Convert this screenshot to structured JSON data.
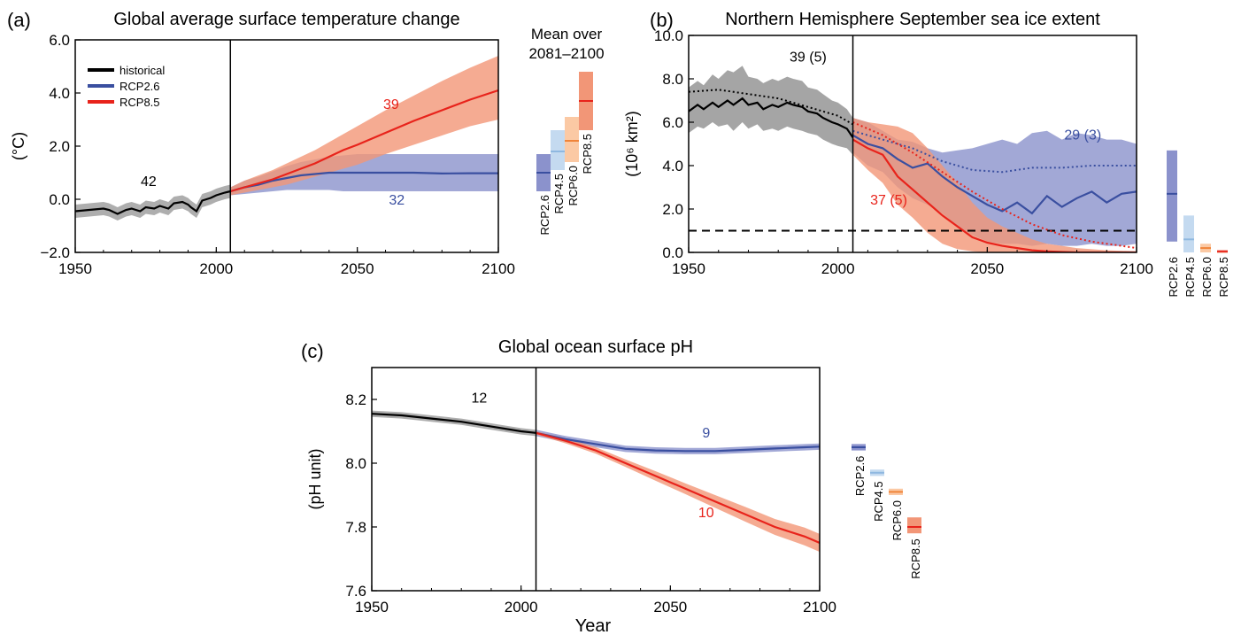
{
  "chart_data": [
    {
      "type": "line",
      "panel": "(a)",
      "title": "Global average surface temperature change",
      "ylabel": "(°C)",
      "xlim": [
        1950,
        2100
      ],
      "ylim": [
        -2.0,
        6.0
      ],
      "xticks": [
        "1950",
        "2000",
        "2050",
        "2100"
      ],
      "yticks": [
        "6.0",
        "4.0",
        "2.0",
        "0.0",
        "−2.0"
      ],
      "divider_year": 2005,
      "legend": {
        "position": "top-left",
        "items": [
          "historical",
          "RCP2.6",
          "RCP8.5"
        ]
      },
      "annotations": [
        {
          "text": "42",
          "x": 1976,
          "y": 0.5,
          "color": "#000000"
        },
        {
          "text": "39",
          "x": 2062,
          "y": 3.4,
          "color": "#e8231b"
        },
        {
          "text": "32",
          "x": 2064,
          "y": -0.2,
          "color": "#3a4fa0"
        }
      ],
      "series": [
        {
          "name": "historical",
          "color": "#000000",
          "band_color": "#9a9a9a",
          "x": [
            1950,
            1955,
            1960,
            1962,
            1965,
            1968,
            1970,
            1973,
            1975,
            1978,
            1980,
            1983,
            1985,
            1988,
            1990,
            1991,
            1993,
            1995,
            1998,
            2000,
            2003,
            2005
          ],
          "values": [
            -0.45,
            -0.4,
            -0.35,
            -0.4,
            -0.55,
            -0.4,
            -0.35,
            -0.45,
            -0.3,
            -0.35,
            -0.25,
            -0.35,
            -0.15,
            -0.1,
            -0.2,
            -0.3,
            -0.45,
            -0.05,
            0.05,
            0.15,
            0.25,
            0.3
          ],
          "band": 0.25
        },
        {
          "name": "RCP2.6",
          "color": "#3a4fa0",
          "band_color": "#8b92cc",
          "x": [
            2005,
            2010,
            2015,
            2020,
            2025,
            2030,
            2035,
            2040,
            2045,
            2050,
            2060,
            2070,
            2080,
            2090,
            2100
          ],
          "values": [
            0.3,
            0.45,
            0.55,
            0.7,
            0.8,
            0.9,
            0.95,
            1.0,
            1.0,
            1.0,
            1.0,
            1.0,
            0.97,
            0.98,
            0.98
          ],
          "lower": [
            0.15,
            0.2,
            0.25,
            0.3,
            0.35,
            0.35,
            0.35,
            0.35,
            0.3,
            0.3,
            0.3,
            0.3,
            0.3,
            0.3,
            0.3
          ],
          "upper": [
            0.45,
            0.7,
            0.85,
            1.05,
            1.25,
            1.4,
            1.5,
            1.6,
            1.65,
            1.7,
            1.7,
            1.7,
            1.7,
            1.7,
            1.7
          ]
        },
        {
          "name": "RCP8.5",
          "color": "#e8231b",
          "band_color": "#f29677",
          "x": [
            2005,
            2010,
            2015,
            2020,
            2025,
            2030,
            2035,
            2040,
            2045,
            2050,
            2060,
            2070,
            2080,
            2090,
            2100
          ],
          "values": [
            0.3,
            0.45,
            0.6,
            0.75,
            0.95,
            1.15,
            1.35,
            1.6,
            1.85,
            2.05,
            2.5,
            2.95,
            3.35,
            3.75,
            4.1
          ],
          "lower": [
            0.15,
            0.25,
            0.35,
            0.45,
            0.55,
            0.7,
            0.85,
            1.0,
            1.15,
            1.3,
            1.7,
            2.05,
            2.4,
            2.75,
            3.0
          ],
          "upper": [
            0.45,
            0.7,
            0.9,
            1.1,
            1.35,
            1.6,
            1.85,
            2.15,
            2.45,
            2.75,
            3.35,
            3.9,
            4.45,
            4.95,
            5.4
          ]
        }
      ],
      "summary_header": "Mean over\n2081–2100",
      "summary_header_lines": [
        "Mean over",
        "2081–2100"
      ],
      "summary_bars": [
        {
          "name": "RCP2.6",
          "mean": 1.0,
          "low": 0.3,
          "high": 1.7,
          "color": "#8b92cc",
          "line_color": "#3a4fa0"
        },
        {
          "name": "RCP4.5",
          "mean": 1.8,
          "low": 1.1,
          "high": 2.6,
          "color": "#c4daf0",
          "line_color": "#8fb8e0"
        },
        {
          "name": "RCP6.0",
          "mean": 2.2,
          "low": 1.4,
          "high": 3.1,
          "color": "#fbc9a4",
          "line_color": "#f0843a"
        },
        {
          "name": "RCP8.5",
          "mean": 3.7,
          "low": 2.6,
          "high": 4.8,
          "color": "#f29677",
          "line_color": "#e8231b"
        }
      ]
    },
    {
      "type": "line",
      "panel": "(b)",
      "title": "Northern Hemisphere September sea ice extent",
      "ylabel": "(10⁶ km²)",
      "xlim": [
        1950,
        2100
      ],
      "ylim": [
        0.0,
        10.0
      ],
      "xticks": [
        "1950",
        "2000",
        "2050",
        "2100"
      ],
      "yticks": [
        "10.0",
        "8.0",
        "6.0",
        "4.0",
        "2.0",
        "0.0"
      ],
      "divider_year": 2005,
      "threshold": 1.0,
      "annotations": [
        {
          "text": "39 (5)",
          "x": 1990,
          "y": 8.8,
          "color": "#000000"
        },
        {
          "text": "29 (3)",
          "x": 2082,
          "y": 5.2,
          "color": "#3a4fa0"
        },
        {
          "text": "37 (5)",
          "x": 2017,
          "y": 2.2,
          "color": "#e8231b"
        }
      ],
      "series": [
        {
          "name": "historical",
          "color": "#000000",
          "band_color": "#8f8f8f",
          "x": [
            1950,
            1953,
            1955,
            1958,
            1960,
            1963,
            1965,
            1968,
            1970,
            1973,
            1975,
            1978,
            1980,
            1983,
            1985,
            1988,
            1990,
            1993,
            1995,
            1998,
            2000,
            2003,
            2005
          ],
          "values": [
            6.5,
            6.8,
            6.6,
            6.9,
            6.7,
            7.0,
            6.8,
            7.1,
            6.8,
            6.9,
            6.6,
            6.8,
            6.7,
            6.9,
            6.8,
            6.7,
            6.5,
            6.4,
            6.2,
            6.0,
            5.9,
            5.7,
            5.3
          ],
          "band_lo": [
            5.5,
            5.8,
            5.7,
            6.0,
            5.8,
            5.9,
            5.6,
            6.0,
            5.7,
            5.9,
            5.6,
            5.7,
            5.6,
            5.8,
            5.7,
            5.6,
            5.5,
            5.4,
            5.2,
            5.0,
            4.9,
            4.8,
            4.5
          ],
          "band_hi": [
            7.6,
            7.9,
            7.7,
            8.2,
            8.0,
            8.4,
            8.3,
            8.6,
            8.1,
            8.0,
            7.8,
            8.0,
            7.9,
            8.1,
            8.0,
            7.9,
            7.6,
            7.5,
            7.3,
            7.0,
            6.9,
            6.6,
            6.2
          ]
        },
        {
          "name": "historical-obs",
          "color": "#000000",
          "style": "dotted",
          "x": [
            1950,
            1960,
            1970,
            1980,
            1990,
            2000,
            2005
          ],
          "values": [
            7.4,
            7.5,
            7.3,
            7.1,
            6.7,
            6.3,
            5.9
          ]
        },
        {
          "name": "RCP2.6",
          "color": "#3a4fa0",
          "band_color": "#8b92cc",
          "x": [
            2005,
            2010,
            2015,
            2020,
            2025,
            2030,
            2035,
            2040,
            2045,
            2050,
            2055,
            2060,
            2065,
            2070,
            2075,
            2080,
            2085,
            2090,
            2095,
            2100
          ],
          "values": [
            5.4,
            5.0,
            4.8,
            4.3,
            3.9,
            4.1,
            3.5,
            3.0,
            2.6,
            2.2,
            1.9,
            2.3,
            1.8,
            2.6,
            2.1,
            2.5,
            2.8,
            2.3,
            2.7,
            2.8
          ],
          "band_lo": [
            4.6,
            4.0,
            3.7,
            3.0,
            2.5,
            2.2,
            1.8,
            1.2,
            0.8,
            0.5,
            0.4,
            0.4,
            0.3,
            0.4,
            0.3,
            0.3,
            0.4,
            0.3,
            0.3,
            0.4
          ],
          "band_hi": [
            6.2,
            6.0,
            5.6,
            5.2,
            5.1,
            4.8,
            4.6,
            4.7,
            4.8,
            5.0,
            5.2,
            5.0,
            5.5,
            5.6,
            5.2,
            5.5,
            5.4,
            5.2,
            5.2,
            5.0
          ]
        },
        {
          "name": "RCP2.6-obs",
          "color": "#3a4fa0",
          "style": "dotted",
          "x": [
            2005,
            2015,
            2025,
            2035,
            2045,
            2055,
            2065,
            2075,
            2085,
            2095,
            2100
          ],
          "values": [
            5.6,
            5.2,
            4.8,
            4.2,
            3.8,
            3.7,
            3.9,
            3.9,
            4.0,
            4.0,
            4.0
          ]
        },
        {
          "name": "RCP8.5",
          "color": "#e8231b",
          "band_color": "#f29677",
          "x": [
            2005,
            2010,
            2015,
            2020,
            2025,
            2030,
            2035,
            2040,
            2045,
            2050,
            2055,
            2060,
            2065,
            2070,
            2075,
            2080,
            2090,
            2100
          ],
          "values": [
            5.2,
            4.8,
            4.5,
            3.5,
            2.9,
            2.3,
            1.7,
            1.2,
            0.7,
            0.45,
            0.3,
            0.2,
            0.1,
            0.05,
            0.02,
            0.0,
            0.0,
            0.0
          ],
          "band_lo": [
            4.5,
            3.8,
            3.2,
            2.2,
            1.6,
            0.9,
            0.4,
            0.15,
            0.05,
            0.0,
            0.0,
            0.0,
            0.0,
            0.0,
            0.0,
            0.0,
            0.0,
            0.0
          ],
          "band_hi": [
            6.2,
            6.0,
            5.9,
            5.8,
            5.5,
            4.8,
            4.0,
            3.2,
            2.3,
            1.6,
            1.2,
            0.9,
            0.6,
            0.4,
            0.3,
            0.2,
            0.1,
            0.05
          ]
        },
        {
          "name": "RCP8.5-obs",
          "color": "#e8231b",
          "style": "dotted",
          "x": [
            2005,
            2015,
            2025,
            2035,
            2045,
            2055,
            2065,
            2075,
            2085,
            2095,
            2100
          ],
          "values": [
            6.0,
            5.4,
            4.6,
            3.7,
            2.8,
            2.0,
            1.3,
            0.8,
            0.5,
            0.3,
            0.2
          ]
        }
      ],
      "summary_bars": [
        {
          "name": "RCP2.6",
          "mean": 2.7,
          "low": 0.5,
          "high": 4.7,
          "color": "#8b92cc",
          "line_color": "#3a4fa0"
        },
        {
          "name": "RCP4.5",
          "mean": 0.6,
          "low": 0.0,
          "high": 1.7,
          "color": "#c4daf0",
          "line_color": "#8fb8e0"
        },
        {
          "name": "RCP6.0",
          "mean": 0.2,
          "low": 0.0,
          "high": 0.4,
          "color": "#fbc9a4",
          "line_color": "#f0843a"
        },
        {
          "name": "RCP8.5",
          "mean": 0.05,
          "low": 0.0,
          "high": 0.1,
          "color": "#f29677",
          "line_color": "#e8231b"
        }
      ]
    },
    {
      "type": "line",
      "panel": "(c)",
      "title": "Global ocean surface pH",
      "xlabel": "Year",
      "ylabel": "(pH unit)",
      "xlim": [
        1950,
        2100
      ],
      "ylim": [
        7.6,
        8.3
      ],
      "xticks": [
        "1950",
        "2000",
        "2050",
        "2100"
      ],
      "yticks": [
        "8.2",
        "8.0",
        "7.8",
        "7.6"
      ],
      "divider_year": 2005,
      "annotations": [
        {
          "text": "12",
          "x": 1986,
          "y": 8.19,
          "color": "#000000"
        },
        {
          "text": "9",
          "x": 2062,
          "y": 8.08,
          "color": "#3a4fa0"
        },
        {
          "text": "10",
          "x": 2062,
          "y": 7.83,
          "color": "#e8231b"
        }
      ],
      "series": [
        {
          "name": "historical",
          "color": "#000000",
          "band_color": "#9a9a9a",
          "x": [
            1950,
            1960,
            1970,
            1980,
            1990,
            2000,
            2005
          ],
          "values": [
            8.155,
            8.15,
            8.14,
            8.13,
            8.115,
            8.1,
            8.095
          ],
          "band": 0.01
        },
        {
          "name": "RCP2.6",
          "color": "#3a4fa0",
          "band_color": "#8b92cc",
          "x": [
            2005,
            2015,
            2025,
            2035,
            2045,
            2055,
            2065,
            2075,
            2085,
            2095,
            2100
          ],
          "values": [
            8.095,
            8.075,
            8.06,
            8.045,
            8.04,
            8.038,
            8.038,
            8.042,
            8.046,
            8.05,
            8.052
          ],
          "band": 0.01
        },
        {
          "name": "RCP8.5",
          "color": "#e8231b",
          "band_color": "#f29677",
          "x": [
            2005,
            2015,
            2025,
            2035,
            2045,
            2055,
            2065,
            2075,
            2085,
            2095,
            2100
          ],
          "values": [
            8.095,
            8.07,
            8.04,
            8.0,
            7.96,
            7.92,
            7.88,
            7.84,
            7.8,
            7.77,
            7.75
          ],
          "lower": [
            8.09,
            8.062,
            8.03,
            7.988,
            7.945,
            7.903,
            7.86,
            7.817,
            7.775,
            7.742,
            7.722
          ],
          "upper": [
            8.1,
            8.078,
            8.05,
            8.012,
            7.975,
            7.937,
            7.9,
            7.863,
            7.825,
            7.798,
            7.778
          ]
        }
      ],
      "summary_bars": [
        {
          "name": "RCP2.6",
          "mean": 8.05,
          "low": 8.04,
          "high": 8.06,
          "color": "#8b92cc",
          "line_color": "#3a4fa0"
        },
        {
          "name": "RCP4.5",
          "mean": 7.97,
          "low": 7.96,
          "high": 7.98,
          "color": "#c4daf0",
          "line_color": "#8fb8e0"
        },
        {
          "name": "RCP6.0",
          "mean": 7.91,
          "low": 7.9,
          "high": 7.92,
          "color": "#fbc9a4",
          "line_color": "#f0843a"
        },
        {
          "name": "RCP8.5",
          "mean": 7.8,
          "low": 7.78,
          "high": 7.83,
          "color": "#f29677",
          "line_color": "#e8231b"
        }
      ]
    }
  ]
}
